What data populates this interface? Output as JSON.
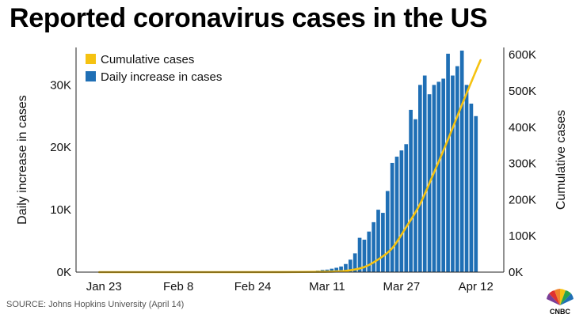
{
  "chart_data": {
    "type": "bar+line",
    "title": "Reported coronavirus cases in the US",
    "ylabel_left": "Daily increase in cases",
    "ylabel_right": "Cumulative cases",
    "left_axis": {
      "min": 0,
      "max": 36000,
      "ticks": [
        0,
        10000,
        20000,
        30000
      ],
      "tick_labels": [
        "0K",
        "10K",
        "20K",
        "30K"
      ]
    },
    "right_axis": {
      "min": 0,
      "max": 620000,
      "ticks": [
        0,
        100000,
        200000,
        300000,
        400000,
        500000,
        600000
      ],
      "tick_labels": [
        "0K",
        "100K",
        "200K",
        "300K",
        "400K",
        "500K",
        "600K"
      ]
    },
    "x_tick_labels": [
      "Jan 23",
      "Feb 8",
      "Feb 24",
      "Mar 11",
      "Mar 27",
      "Apr 12"
    ],
    "x_tick_days": [
      "2020-01-23",
      "2020-02-08",
      "2020-02-24",
      "2020-03-11",
      "2020-03-27",
      "2020-04-12"
    ],
    "x_range": [
      "2020-01-17",
      "2020-04-18"
    ],
    "legend": {
      "position": "top-left",
      "entries": [
        "Cumulative cases",
        "Daily increase in cases"
      ]
    },
    "grid": false,
    "series": [
      {
        "name": "Daily increase in cases",
        "type": "bar",
        "color": "#1f6fb5",
        "x_start": "2020-03-01",
        "values": [
          20,
          30,
          25,
          40,
          60,
          90,
          120,
          180,
          250,
          350,
          400,
          550,
          700,
          900,
          1300,
          2000,
          3000,
          5500,
          5200,
          6500,
          8000,
          10000,
          9500,
          13000,
          17500,
          18500,
          19500,
          20500,
          26000,
          24500,
          30000,
          31500,
          28500,
          30000,
          30500,
          31000,
          35000,
          31500,
          33000,
          35500,
          30000,
          27000,
          25000
        ]
      },
      {
        "name": "Cumulative cases",
        "type": "line",
        "color": "#f5c211",
        "x": [
          "2020-01-22",
          "2020-02-15",
          "2020-03-01",
          "2020-03-10",
          "2020-03-15",
          "2020-03-19",
          "2020-03-22",
          "2020-03-25",
          "2020-03-28",
          "2020-03-31",
          "2020-04-03",
          "2020-04-06",
          "2020-04-09",
          "2020-04-12",
          "2020-04-13"
        ],
        "values": [
          1,
          15,
          80,
          1000,
          3500,
          14000,
          35000,
          66000,
          124000,
          188000,
          275000,
          366000,
          462000,
          555000,
          585000
        ]
      }
    ]
  },
  "footer": {
    "source": "SOURCE: Johns Hopkins University (April 14)",
    "logo_text": "CNBC"
  }
}
